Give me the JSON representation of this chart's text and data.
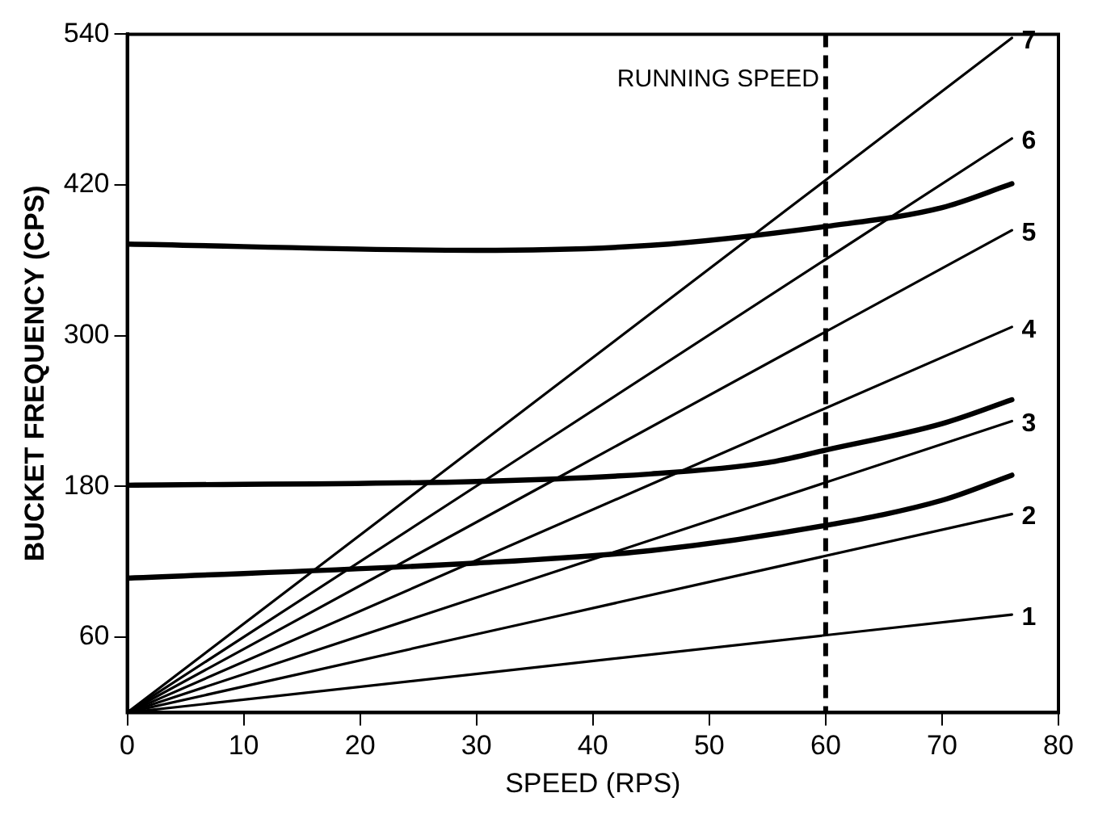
{
  "chart_data": {
    "type": "line",
    "xlabel": "SPEED (RPS)",
    "ylabel": "BUCKET FREQUENCY (CPS)",
    "xlim": [
      0,
      80
    ],
    "xticks": [
      0,
      10,
      20,
      30,
      40,
      50,
      60,
      70,
      80
    ],
    "ylim": [
      0,
      540
    ],
    "yticks": [
      60,
      180,
      300,
      420,
      540
    ],
    "grid": false,
    "legend": false,
    "marker": "none",
    "line_style": "solid",
    "series": [
      {
        "name": "1",
        "color": "#000000",
        "x": [
          0,
          76
        ],
        "values": [
          0,
          78
        ]
      },
      {
        "name": "2",
        "color": "#000000",
        "x": [
          0,
          76
        ],
        "values": [
          0,
          158
        ]
      },
      {
        "name": "3",
        "color": "#000000",
        "x": [
          0,
          76
        ],
        "values": [
          0,
          232
        ]
      },
      {
        "name": "4",
        "color": "#000000",
        "x": [
          0,
          76
        ],
        "values": [
          0,
          307
        ]
      },
      {
        "name": "5",
        "color": "#000000",
        "x": [
          0,
          76
        ],
        "values": [
          0,
          384
        ]
      },
      {
        "name": "6",
        "color": "#000000",
        "x": [
          0,
          76
        ],
        "values": [
          0,
          457
        ]
      },
      {
        "name": "7",
        "color": "#000000",
        "x": [
          0,
          76
        ],
        "values": [
          0,
          537
        ]
      },
      {
        "color": "#000000",
        "x": [
          0,
          30,
          45,
          60,
          70,
          76
        ],
        "values": [
          107,
          119,
          129,
          149,
          169,
          189
        ]
      },
      {
        "color": "#000000",
        "x": [
          0,
          30,
          45,
          55,
          60,
          70,
          76
        ],
        "values": [
          181,
          184,
          190,
          199,
          209,
          230,
          249
        ]
      },
      {
        "color": "#000000",
        "x": [
          0,
          30,
          45,
          60,
          70,
          76
        ],
        "values": [
          373,
          368,
          372,
          387,
          402,
          421
        ]
      }
    ],
    "ref_lines": [
      {
        "axis": "x",
        "value": 60,
        "label": "RUNNING SPEED",
        "color": "#000000",
        "line_style": "dashed"
      }
    ]
  }
}
